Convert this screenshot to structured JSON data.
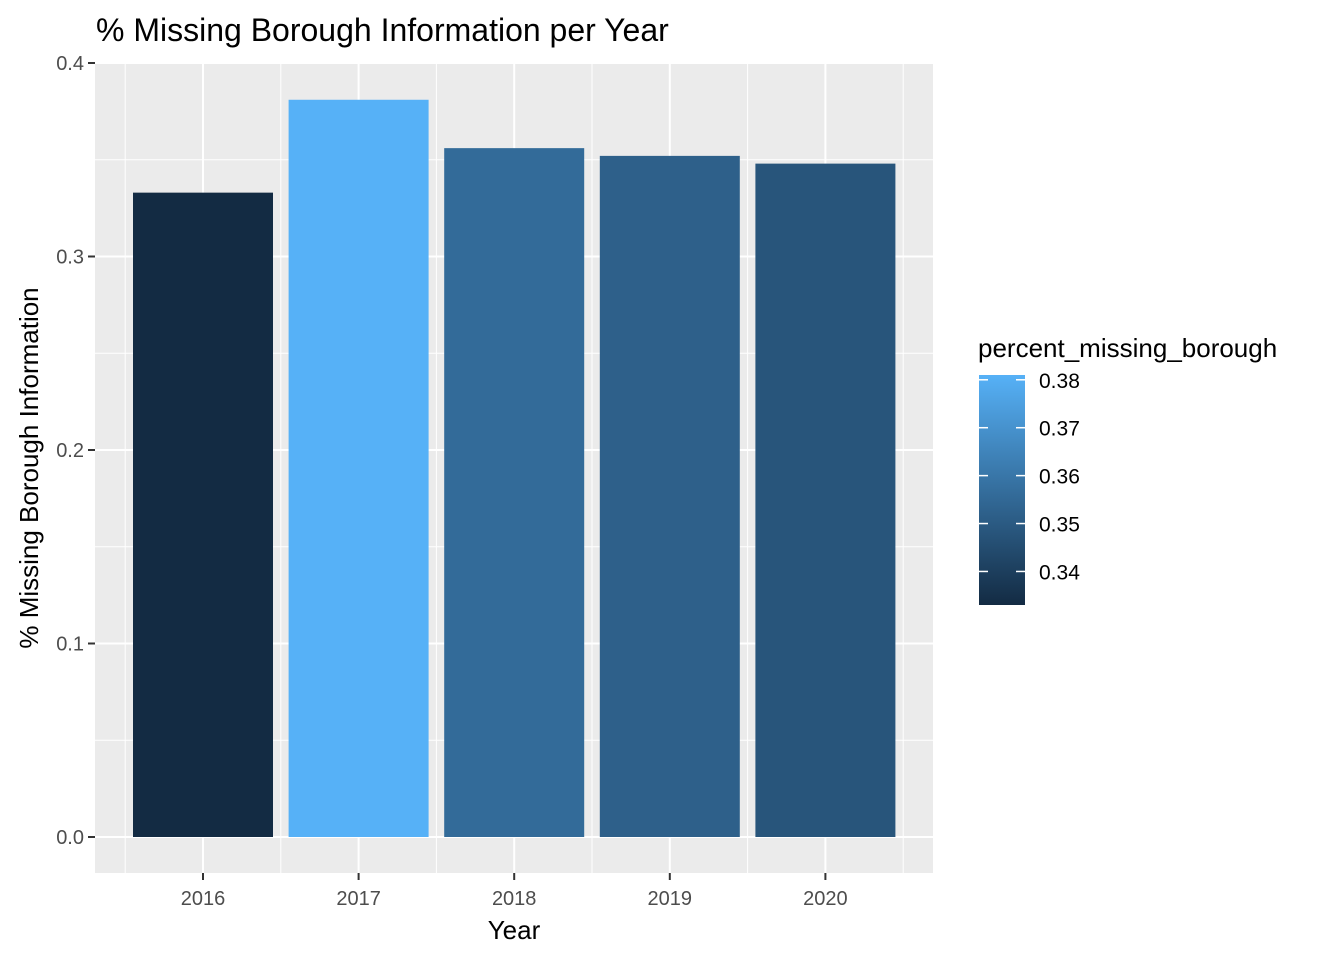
{
  "chart_data": {
    "type": "bar",
    "title": "% Missing Borough Information per Year",
    "xlabel": "Year",
    "ylabel": "% Missing Borough Information",
    "categories": [
      "2016",
      "2017",
      "2018",
      "2019",
      "2020"
    ],
    "values": [
      0.333,
      0.381,
      0.356,
      0.352,
      0.348
    ],
    "ylim": [
      0,
      0.4
    ],
    "y_ticks": [
      0.0,
      0.1,
      0.2,
      0.3,
      0.4
    ],
    "y_tick_labels": [
      "0.0",
      "0.1",
      "0.2",
      "0.3",
      "0.4"
    ],
    "grid": true,
    "legend": {
      "title": "percent_missing_borough",
      "placement": "right",
      "type": "continuous-colorbar",
      "range": [
        0.333,
        0.381
      ],
      "low_color": "#132B43",
      "high_color": "#56B1F7",
      "ticks": [
        0.34,
        0.35,
        0.36,
        0.37,
        0.38
      ],
      "tick_labels": [
        "0.34",
        "0.35",
        "0.36",
        "0.37",
        "0.38"
      ]
    },
    "colors": {
      "panel_background": "#EBEBEB",
      "grid": "#FFFFFF"
    }
  }
}
